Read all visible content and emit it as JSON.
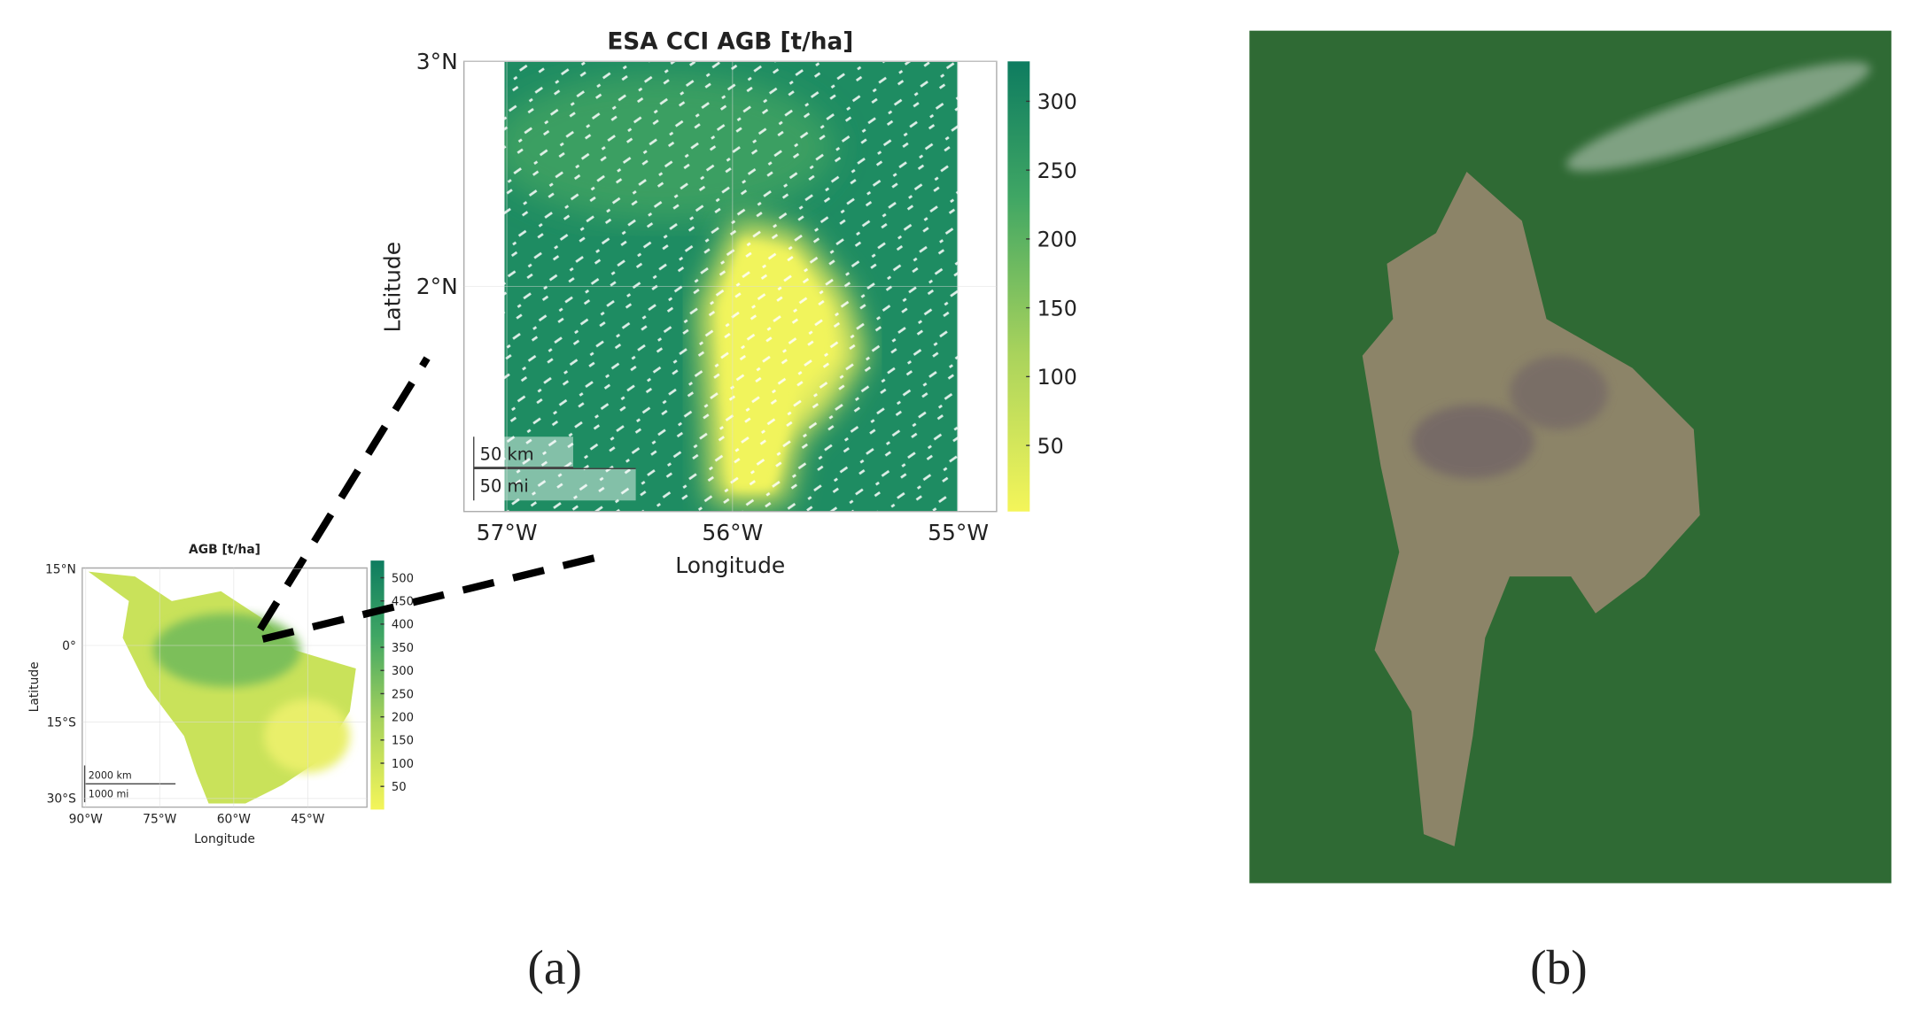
{
  "panel_a": {
    "main_map": {
      "title": "ESA CCI AGB [t/ha]",
      "x_label": "Longitude",
      "y_label": "Latitude",
      "xlim": [
        -57.19,
        -54.83
      ],
      "ylim": [
        1.0,
        3.0
      ],
      "xticks": [
        {
          "value": -57,
          "label": "57°W"
        },
        {
          "value": -56,
          "label": "56°W"
        },
        {
          "value": -55,
          "label": "55°W"
        }
      ],
      "yticks": [
        {
          "value": 3,
          "label": "3°N"
        },
        {
          "value": 2,
          "label": "2°N"
        }
      ],
      "colorbar": {
        "lim": [
          2,
          329
        ],
        "ticks": [
          50,
          100,
          150,
          200,
          250,
          300
        ]
      },
      "scale_bars": [
        "50 km",
        "50 mi"
      ]
    },
    "inset_map": {
      "title": "AGB [t/ha]",
      "x_label": "Longitude",
      "y_label": "Latitude",
      "xlim": [
        -90.7,
        -33
      ],
      "ylim": [
        -31.7,
        15.2
      ],
      "xticks": [
        {
          "value": -90,
          "label": "90°W"
        },
        {
          "value": -75,
          "label": "75°W"
        },
        {
          "value": -60,
          "label": "60°W"
        },
        {
          "value": -45,
          "label": "45°W"
        }
      ],
      "yticks": [
        {
          "value": 15,
          "label": "15°N"
        },
        {
          "value": 0,
          "label": "0°"
        },
        {
          "value": -15,
          "label": "15°S"
        },
        {
          "value": -30,
          "label": "30°S"
        }
      ],
      "colorbar": {
        "lim": [
          0,
          537
        ],
        "ticks": [
          50,
          100,
          150,
          200,
          250,
          300,
          350,
          400,
          450,
          500
        ]
      },
      "scale_bars": [
        "2000 km",
        "1000 mi"
      ]
    },
    "label": "(a)"
  },
  "panel_b": {
    "label": "(b)"
  }
}
